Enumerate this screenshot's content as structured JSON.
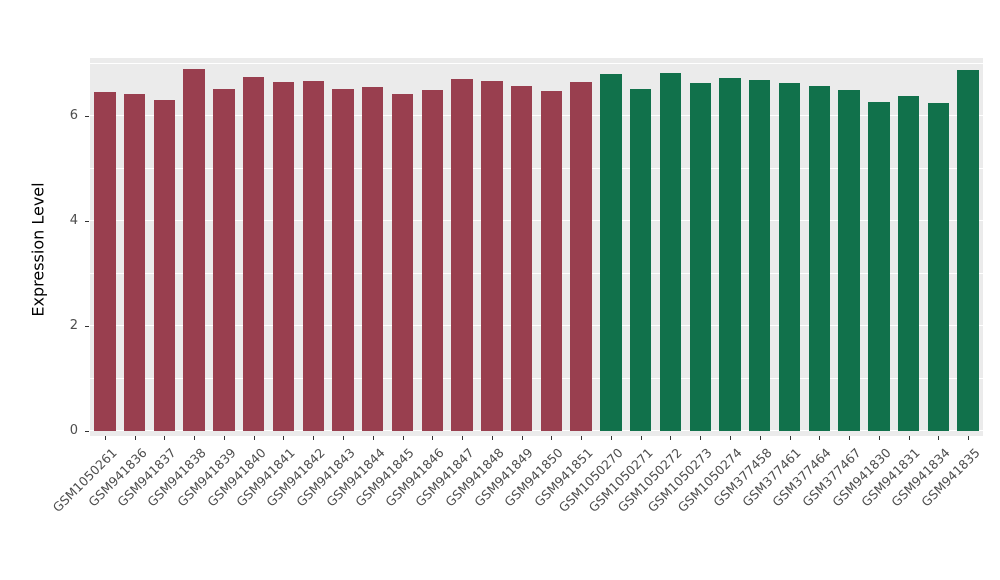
{
  "chart_data": {
    "type": "bar",
    "title": "",
    "xlabel": "",
    "ylabel": "Expression Level",
    "ylim": [
      0,
      7.2
    ],
    "yticks": [
      0,
      2,
      4,
      6
    ],
    "grid": "on",
    "legend": "none",
    "panel_bg": "#EBEBEB",
    "grid_color": "#FFFFFF",
    "group_colors": [
      "#993F4F",
      "#11714B"
    ],
    "group_names": [
      "group-red",
      "group-green"
    ],
    "categories": [
      "GSM1050261",
      "GSM941836",
      "GSM941837",
      "GSM941838",
      "GSM941839",
      "GSM941840",
      "GSM941841",
      "GSM941842",
      "GSM941843",
      "GSM941844",
      "GSM941845",
      "GSM941846",
      "GSM941847",
      "GSM941848",
      "GSM941849",
      "GSM941850",
      "GSM941851",
      "GSM1050270",
      "GSM1050271",
      "GSM1050272",
      "GSM1050273",
      "GSM1050274",
      "GSM377458",
      "GSM377461",
      "GSM377464",
      "GSM377467",
      "GSM941830",
      "GSM941831",
      "GSM941834",
      "GSM941835"
    ],
    "values": [
      6.45,
      6.42,
      6.3,
      6.9,
      6.52,
      6.75,
      6.65,
      6.66,
      6.52,
      6.55,
      6.42,
      6.5,
      6.7,
      6.67,
      6.58,
      6.47,
      6.65,
      6.8,
      6.52,
      6.82,
      6.63,
      6.73,
      6.68,
      6.62,
      6.57,
      6.5,
      6.27,
      6.38,
      6.25,
      6.87
    ],
    "groups": [
      0,
      0,
      0,
      0,
      0,
      0,
      0,
      0,
      0,
      0,
      0,
      0,
      0,
      0,
      0,
      0,
      0,
      1,
      1,
      1,
      1,
      1,
      1,
      1,
      1,
      1,
      1,
      1,
      1,
      1
    ]
  }
}
